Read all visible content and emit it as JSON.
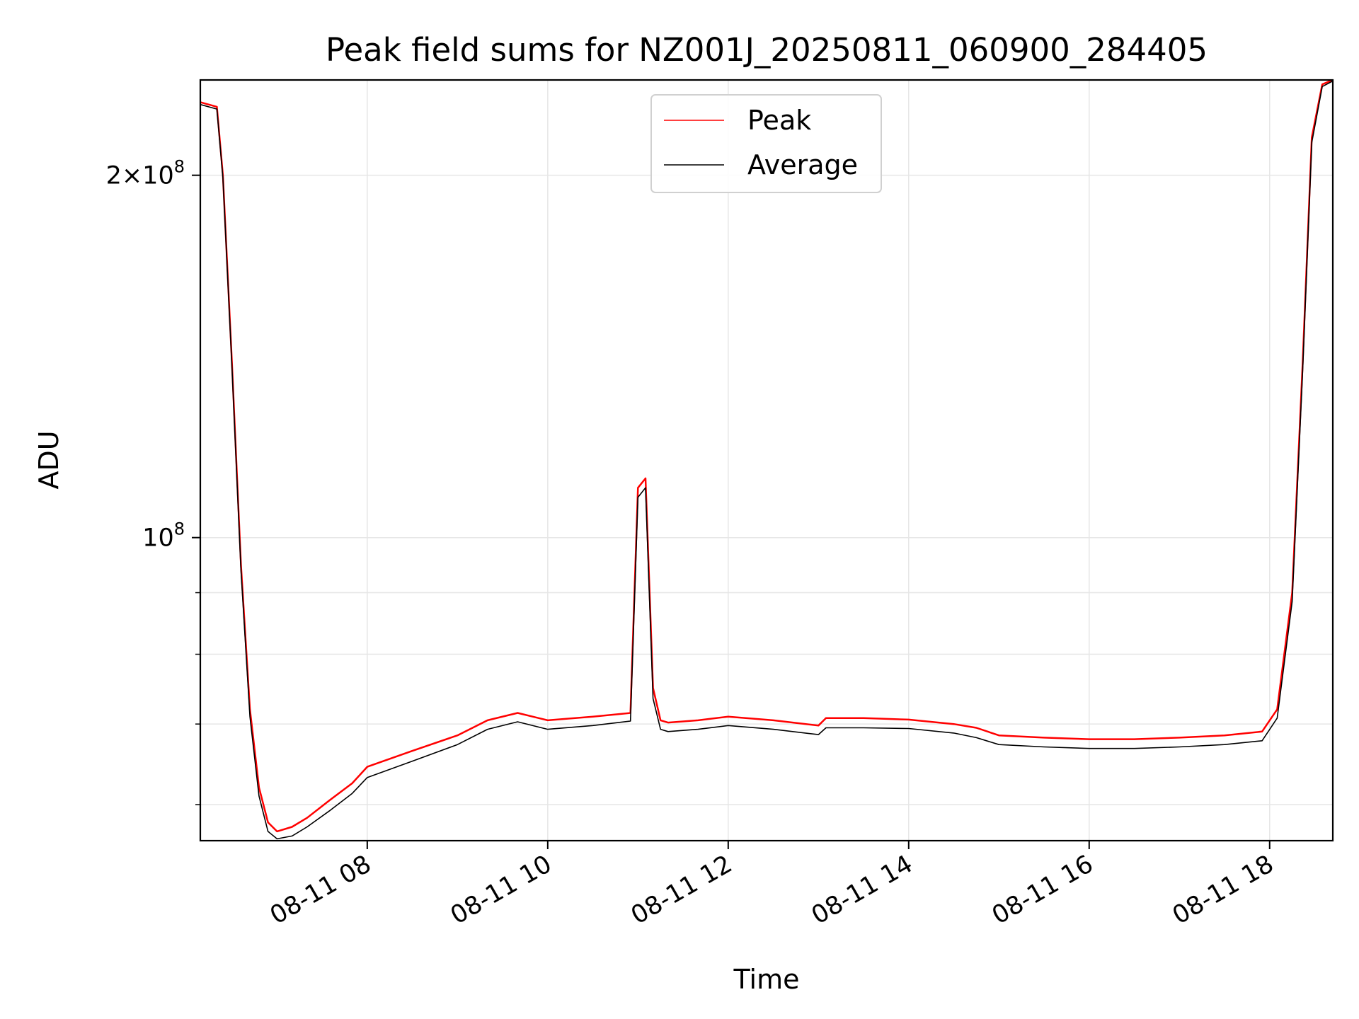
{
  "chart_data": {
    "type": "line",
    "title": "Peak field sums for NZ001J_20250811_060900_284405",
    "xlabel": "Time",
    "ylabel": "ADU",
    "y_scale": "log",
    "ylim": [
      56000000,
      240000000
    ],
    "xlim": [
      "2025-08-11T06:09",
      "2025-08-11T18:42"
    ],
    "grid": true,
    "legend_position": "top-center",
    "x_ticks": [
      {
        "label": "08-11 08",
        "time": "2025-08-11T08:00"
      },
      {
        "label": "08-11 10",
        "time": "2025-08-11T10:00"
      },
      {
        "label": "08-11 12",
        "time": "2025-08-11T12:00"
      },
      {
        "label": "08-11 14",
        "time": "2025-08-11T14:00"
      },
      {
        "label": "08-11 16",
        "time": "2025-08-11T16:00"
      },
      {
        "label": "08-11 18",
        "time": "2025-08-11T18:00"
      }
    ],
    "y_ticks": [
      {
        "base": "2×10",
        "exp": "8",
        "value": 200000000
      },
      {
        "base": "10",
        "exp": "8",
        "value": 100000000
      }
    ],
    "y_minor_ticks": [
      60000000,
      70000000,
      80000000,
      90000000
    ],
    "series": [
      {
        "name": "Peak",
        "color": "#ff0000",
        "x": [
          "2025-08-11T06:09",
          "2025-08-11T06:20",
          "2025-08-11T06:24",
          "2025-08-11T06:30",
          "2025-08-11T06:36",
          "2025-08-11T06:42",
          "2025-08-11T06:48",
          "2025-08-11T06:54",
          "2025-08-11T07:00",
          "2025-08-11T07:10",
          "2025-08-11T07:20",
          "2025-08-11T07:35",
          "2025-08-11T07:50",
          "2025-08-11T08:00",
          "2025-08-11T08:30",
          "2025-08-11T09:00",
          "2025-08-11T09:20",
          "2025-08-11T09:40",
          "2025-08-11T10:00",
          "2025-08-11T10:30",
          "2025-08-11T10:55",
          "2025-08-11T11:00",
          "2025-08-11T11:05",
          "2025-08-11T11:10",
          "2025-08-11T11:15",
          "2025-08-11T11:20",
          "2025-08-11T11:40",
          "2025-08-11T12:00",
          "2025-08-11T12:30",
          "2025-08-11T13:00",
          "2025-08-11T13:05",
          "2025-08-11T13:30",
          "2025-08-11T14:00",
          "2025-08-11T14:30",
          "2025-08-11T14:45",
          "2025-08-11T15:00",
          "2025-08-11T15:30",
          "2025-08-11T16:00",
          "2025-08-11T16:30",
          "2025-08-11T17:00",
          "2025-08-11T17:30",
          "2025-08-11T17:55",
          "2025-08-11T18:05",
          "2025-08-11T18:15",
          "2025-08-11T18:22",
          "2025-08-11T18:28",
          "2025-08-11T18:35",
          "2025-08-11T18:42"
        ],
        "y": [
          230000000,
          228000000,
          200000000,
          140000000,
          95000000,
          72000000,
          62000000,
          58000000,
          57000000,
          57500000,
          58500000,
          60500000,
          62500000,
          64500000,
          66500000,
          68500000,
          70500000,
          71500000,
          70500000,
          71000000,
          71500000,
          110000000,
          112000000,
          75000000,
          70500000,
          70200000,
          70500000,
          71000000,
          70500000,
          69800000,
          70800000,
          70800000,
          70600000,
          70000000,
          69500000,
          68500000,
          68200000,
          68000000,
          68000000,
          68200000,
          68500000,
          69000000,
          72000000,
          90000000,
          140000000,
          215000000,
          238000000,
          240000000
        ]
      },
      {
        "name": "Average",
        "color": "#000000",
        "x": [
          "2025-08-11T06:09",
          "2025-08-11T06:20",
          "2025-08-11T06:24",
          "2025-08-11T06:30",
          "2025-08-11T06:36",
          "2025-08-11T06:42",
          "2025-08-11T06:48",
          "2025-08-11T06:54",
          "2025-08-11T07:00",
          "2025-08-11T07:10",
          "2025-08-11T07:20",
          "2025-08-11T07:35",
          "2025-08-11T07:50",
          "2025-08-11T08:00",
          "2025-08-11T08:30",
          "2025-08-11T09:00",
          "2025-08-11T09:20",
          "2025-08-11T09:40",
          "2025-08-11T10:00",
          "2025-08-11T10:30",
          "2025-08-11T10:55",
          "2025-08-11T11:00",
          "2025-08-11T11:05",
          "2025-08-11T11:10",
          "2025-08-11T11:15",
          "2025-08-11T11:20",
          "2025-08-11T11:40",
          "2025-08-11T12:00",
          "2025-08-11T12:30",
          "2025-08-11T13:00",
          "2025-08-11T13:05",
          "2025-08-11T13:30",
          "2025-08-11T14:00",
          "2025-08-11T14:30",
          "2025-08-11T14:45",
          "2025-08-11T15:00",
          "2025-08-11T15:30",
          "2025-08-11T16:00",
          "2025-08-11T16:30",
          "2025-08-11T17:00",
          "2025-08-11T17:30",
          "2025-08-11T17:55",
          "2025-08-11T18:05",
          "2025-08-11T18:15",
          "2025-08-11T18:22",
          "2025-08-11T18:28",
          "2025-08-11T18:35",
          "2025-08-11T18:42"
        ],
        "y": [
          229000000,
          227000000,
          199000000,
          139000000,
          94000000,
          71000000,
          61000000,
          57000000,
          56200000,
          56500000,
          57500000,
          59300000,
          61300000,
          63200000,
          65200000,
          67300000,
          69300000,
          70300000,
          69300000,
          69800000,
          70400000,
          108000000,
          110000000,
          73500000,
          69300000,
          69000000,
          69300000,
          69800000,
          69300000,
          68600000,
          69500000,
          69500000,
          69400000,
          68800000,
          68200000,
          67300000,
          67000000,
          66800000,
          66800000,
          67000000,
          67300000,
          67800000,
          70800000,
          88500000,
          138000000,
          213000000,
          237000000,
          239500000
        ]
      }
    ]
  }
}
